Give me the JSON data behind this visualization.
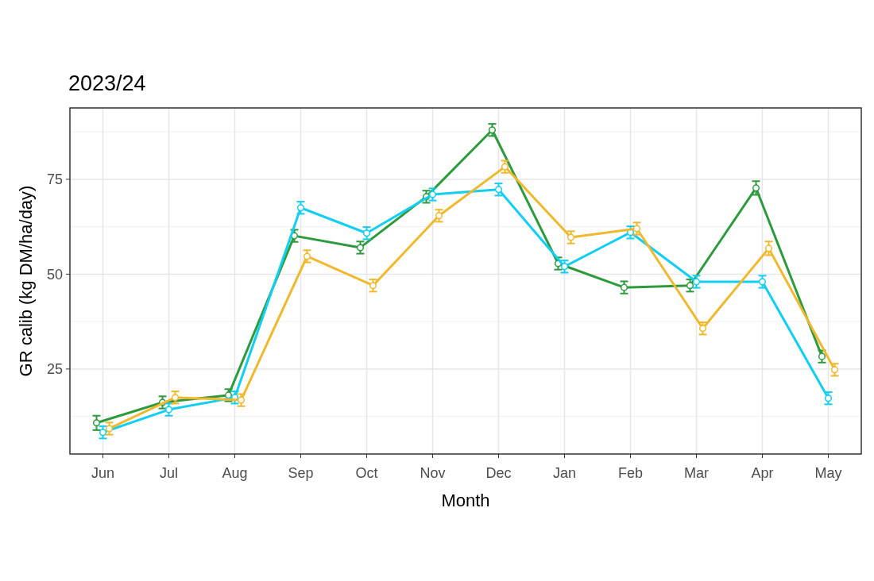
{
  "chart_data": {
    "type": "line",
    "title": "2023/24",
    "xlabel": "Month",
    "ylabel": "GR calib (kg DM/ha/day)",
    "categories": [
      "Jun",
      "Jul",
      "Aug",
      "Sep",
      "Oct",
      "Nov",
      "Dec",
      "Jan",
      "Feb",
      "Mar",
      "Apr",
      "May"
    ],
    "ylim": [
      2.6,
      93.8
    ],
    "yticks": [
      25,
      50,
      75
    ],
    "grid": true,
    "marker": "circle",
    "line_style": "solid",
    "series": [
      {
        "color": "#2e9a3e",
        "values": [
          10.8,
          16.2,
          18.1,
          60.1,
          57.0,
          70.4,
          88.0,
          52.8,
          46.5,
          47.0,
          72.7,
          28.3
        ],
        "errors": [
          1.9,
          1.6,
          1.6,
          1.6,
          1.6,
          1.6,
          1.6,
          1.6,
          1.6,
          1.6,
          1.8,
          1.6
        ]
      },
      {
        "color": "#12cff2",
        "values": [
          8.3,
          14.3,
          17.5,
          67.5,
          60.8,
          71.0,
          72.3,
          52.0,
          61.0,
          48.0,
          48.0,
          17.3
        ],
        "errors": [
          1.6,
          1.6,
          1.6,
          1.6,
          1.6,
          1.6,
          1.6,
          1.6,
          1.6,
          1.6,
          1.6,
          1.6
        ]
      },
      {
        "color": "#f0b82d",
        "values": [
          9.3,
          17.5,
          16.8,
          54.7,
          47.0,
          65.4,
          78.3,
          59.7,
          62.0,
          35.7,
          56.8,
          24.8
        ],
        "errors": [
          1.6,
          1.6,
          1.6,
          1.6,
          1.6,
          1.6,
          1.6,
          1.6,
          1.6,
          1.6,
          1.8,
          1.6
        ]
      }
    ]
  }
}
